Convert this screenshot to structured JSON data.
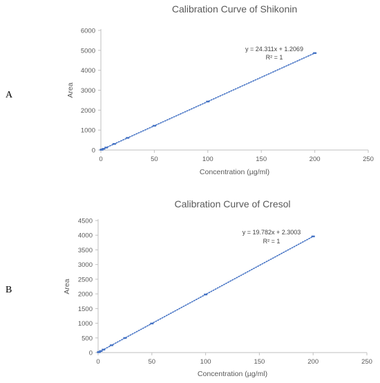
{
  "panels": {
    "a_label": "A",
    "b_label": "B"
  },
  "chart_data": [
    {
      "type": "scatter",
      "title": "Calibration Curve of Shikonin",
      "xlabel": "Concentration (µg/ml)",
      "ylabel": "Area",
      "xlim": [
        0,
        250
      ],
      "ylim": [
        0,
        6000
      ],
      "xticks": [
        0,
        50,
        100,
        150,
        200,
        250
      ],
      "yticks": [
        0,
        1000,
        2000,
        3000,
        4000,
        5000,
        6000
      ],
      "grid": false,
      "series": [
        {
          "x": [
            0.5,
            1,
            2.5,
            5,
            12.5,
            25,
            50,
            100,
            200
          ],
          "y": [
            13,
            25,
            62,
            123,
            305,
            609,
            1217,
            2432,
            4863
          ]
        }
      ],
      "trendline": {
        "slope": 24.311,
        "intercept": 1.2069,
        "style": "dotted"
      },
      "annotations": {
        "equation": "y = 24.311x + 1.2069",
        "r2": "R² = 1"
      },
      "colors": {
        "points": "#4472c4",
        "trend": "#4472c4",
        "axis": "#bfbfbf"
      }
    },
    {
      "type": "scatter",
      "title": "Calibration Curve of Cresol",
      "xlabel": "Concentration (µg/ml)",
      "ylabel": "Area",
      "xlim": [
        0,
        250
      ],
      "ylim": [
        0,
        4500
      ],
      "xticks": [
        0,
        50,
        100,
        150,
        200,
        250
      ],
      "yticks": [
        0,
        500,
        1000,
        1500,
        2000,
        2500,
        3000,
        3500,
        4000,
        4500
      ],
      "grid": false,
      "series": [
        {
          "x": [
            0.5,
            1,
            2.5,
            5,
            12.5,
            25,
            50,
            100,
            200
          ],
          "y": [
            12,
            22,
            52,
            101,
            250,
            497,
            991,
            1980,
            3959
          ]
        }
      ],
      "trendline": {
        "slope": 19.782,
        "intercept": 2.3003,
        "style": "dotted"
      },
      "annotations": {
        "equation": "y = 19.782x + 2.3003",
        "r2": "R² = 1"
      },
      "colors": {
        "points": "#4472c4",
        "trend": "#4472c4",
        "axis": "#bfbfbf"
      }
    }
  ]
}
